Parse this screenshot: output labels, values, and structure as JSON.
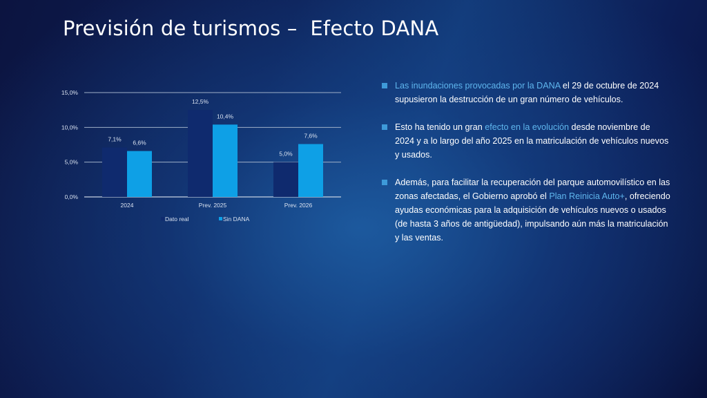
{
  "title": "Previsión de turismos –  Efecto DANA",
  "colors": {
    "dato_real": "#0f2a6e",
    "sin_dana": "#0ea0e6",
    "highlight": "#5fb6ee",
    "bullet": "#3e9ad9"
  },
  "chart_data": {
    "type": "bar",
    "categories": [
      "2024",
      "Prev. 2025",
      "Prev. 2026"
    ],
    "series": [
      {
        "name": "Dato real",
        "values": [
          7.1,
          12.5,
          5.0
        ],
        "labels": [
          "7,1%",
          "12,5%",
          "5,0%"
        ]
      },
      {
        "name": "Sin DANA",
        "values": [
          6.6,
          10.4,
          7.6
        ],
        "labels": [
          "6,6%",
          "10,4%",
          "7,6%"
        ]
      }
    ],
    "ylim": [
      0,
      15
    ],
    "yticks": [
      0,
      5,
      10,
      15
    ],
    "ytick_labels": [
      "0,0%",
      "5,0%",
      "10,0%",
      "15,0%"
    ],
    "grid": true,
    "legend": "bottom"
  },
  "bullets": [
    {
      "parts": [
        {
          "text": "Las inundaciones provocadas por la DANA",
          "hl": true
        },
        {
          "text": " el 29 de octubre de 2024 supusieron la destrucción de un gran número de vehículos.",
          "hl": false
        }
      ]
    },
    {
      "parts": [
        {
          "text": "Esto ha tenido un gran ",
          "hl": false
        },
        {
          "text": "efecto en la evolución",
          "hl": true
        },
        {
          "text": " desde noviembre de 2024 y a lo largo del año 2025 en la matriculación de vehículos nuevos y usados.",
          "hl": false
        }
      ]
    },
    {
      "parts": [
        {
          "text": "Además, para facilitar la recuperación del parque automovilístico en las zonas afectadas, el Gobierno aprobó el ",
          "hl": false
        },
        {
          "text": "Plan Reinicia Auto+",
          "hl": true
        },
        {
          "text": ", ofreciendo ayudas económicas para la adquisición de vehículos nuevos o usados (de hasta 3 años de antigüedad), impulsando aún más la matriculación y las ventas.",
          "hl": false
        }
      ]
    }
  ]
}
